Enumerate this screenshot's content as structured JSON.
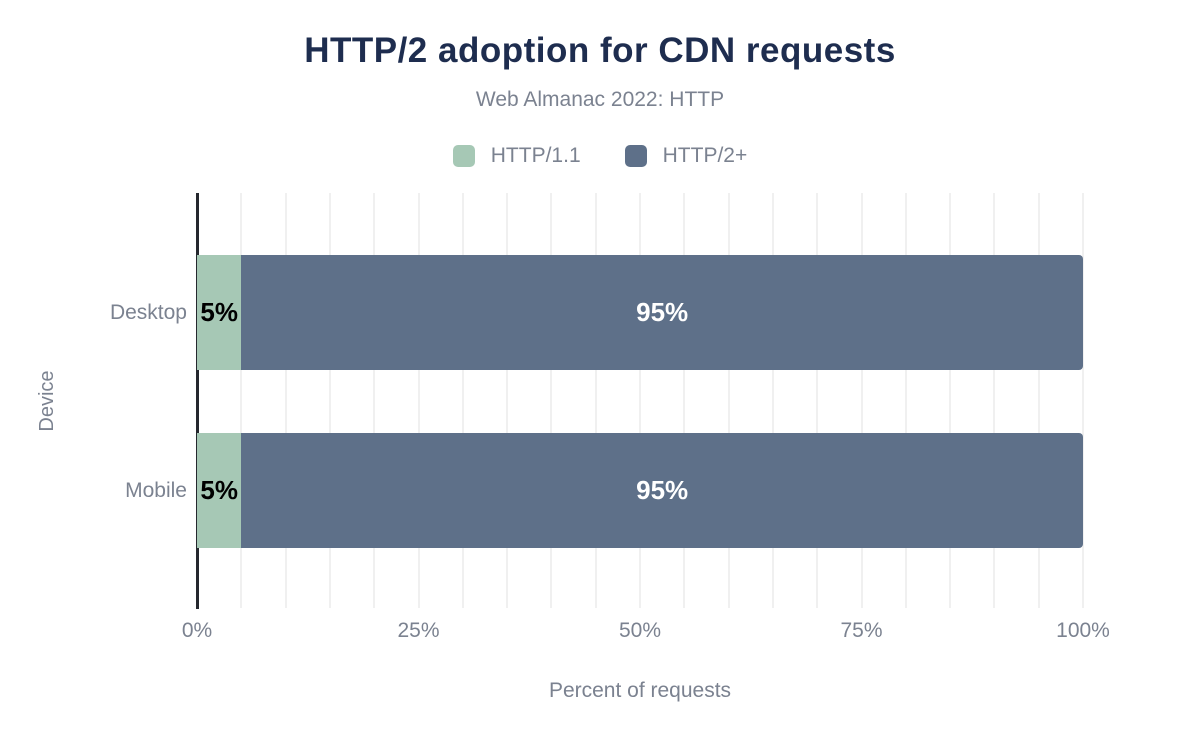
{
  "chart_data": {
    "type": "bar",
    "orientation": "horizontal",
    "stacked": true,
    "title": "HTTP/2 adoption for CDN requests",
    "subtitle": "Web Almanac 2022: HTTP",
    "xlabel": "Percent of requests",
    "ylabel": "Device",
    "categories": [
      "Desktop",
      "Mobile"
    ],
    "series": [
      {
        "name": "HTTP/1.1",
        "color": "#a6c8b5",
        "label_color": "#000000",
        "values": [
          5,
          5
        ],
        "labels": [
          "5%",
          "5%"
        ]
      },
      {
        "name": "HTTP/2+",
        "color": "#5e7089",
        "label_color": "#ffffff",
        "values": [
          95,
          95
        ],
        "labels": [
          "95%",
          "95%"
        ]
      }
    ],
    "xlim": [
      0,
      100
    ],
    "x_ticks": [
      {
        "value": 0,
        "label": "0%"
      },
      {
        "value": 25,
        "label": "25%"
      },
      {
        "value": 50,
        "label": "50%"
      },
      {
        "value": 75,
        "label": "75%"
      },
      {
        "value": 100,
        "label": "100%"
      }
    ],
    "grid": {
      "vertical_step_percent": 5,
      "visible": true
    },
    "legend_position": "top"
  },
  "colors": {
    "background": "#ffffff",
    "title_text": "#1e2d4f",
    "muted_text": "#7b8290",
    "axis_line": "#25282e",
    "gridline": "#f0f0f0"
  }
}
